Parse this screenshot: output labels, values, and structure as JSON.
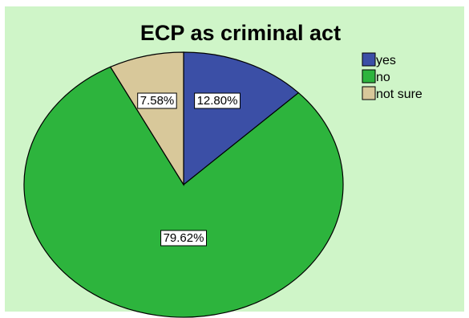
{
  "chart_data": {
    "type": "pie",
    "title": "ECP as criminal act",
    "categories": [
      "yes",
      "no",
      "not sure"
    ],
    "values": [
      12.8,
      79.62,
      7.58
    ],
    "data_labels": [
      "12.80%",
      "79.62%",
      "7.58%"
    ],
    "colors": [
      "#3b4fa6",
      "#2db43d",
      "#d8c89a"
    ],
    "legend_position": "top-right",
    "background_color": "#cff5c8"
  }
}
